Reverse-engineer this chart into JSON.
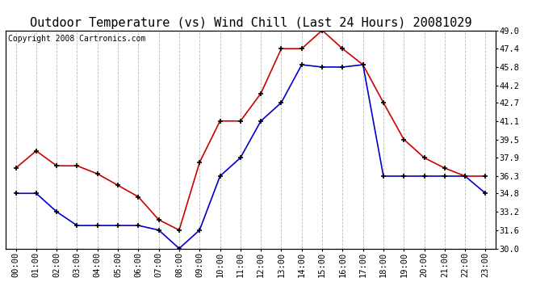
{
  "title": "Outdoor Temperature (vs) Wind Chill (Last 24 Hours) 20081029",
  "copyright": "Copyright 2008 Cartronics.com",
  "hours": [
    "00:00",
    "01:00",
    "02:00",
    "03:00",
    "04:00",
    "05:00",
    "06:00",
    "07:00",
    "08:00",
    "09:00",
    "10:00",
    "11:00",
    "12:00",
    "13:00",
    "14:00",
    "15:00",
    "16:00",
    "17:00",
    "18:00",
    "19:00",
    "20:00",
    "21:00",
    "22:00",
    "23:00"
  ],
  "temp_red": [
    37.0,
    38.5,
    37.2,
    37.2,
    36.5,
    35.5,
    34.5,
    32.5,
    31.6,
    37.5,
    41.1,
    41.1,
    43.5,
    47.4,
    47.4,
    49.0,
    47.4,
    46.0,
    42.7,
    39.5,
    37.9,
    37.0,
    36.3,
    36.3
  ],
  "temp_blue": [
    34.8,
    34.8,
    33.2,
    32.0,
    32.0,
    32.0,
    32.0,
    31.6,
    30.0,
    31.6,
    36.3,
    37.9,
    41.1,
    42.7,
    46.0,
    45.8,
    45.8,
    46.0,
    36.3,
    36.3,
    36.3,
    36.3,
    36.3,
    34.8
  ],
  "ylim": [
    30.0,
    49.0
  ],
  "yticks": [
    30.0,
    31.6,
    33.2,
    34.8,
    36.3,
    37.9,
    39.5,
    41.1,
    42.7,
    44.2,
    45.8,
    47.4,
    49.0
  ],
  "red_color": "#cc0000",
  "blue_color": "#0000cc",
  "grid_color": "#bbbbbb",
  "bg_color": "#ffffff",
  "title_fontsize": 11,
  "tick_fontsize": 7.5,
  "copyright_fontsize": 7
}
